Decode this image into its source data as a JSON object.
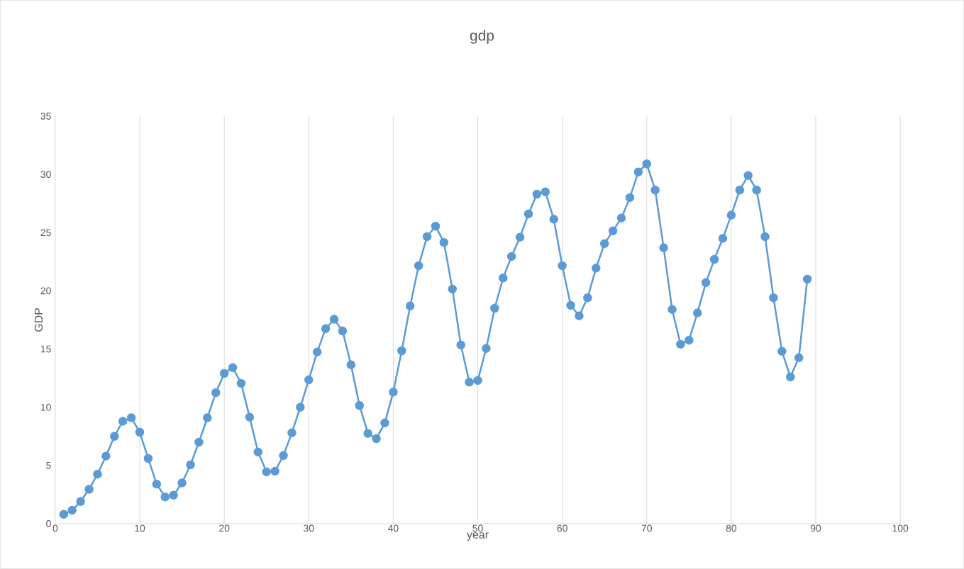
{
  "chart_data": {
    "type": "line",
    "title": "gdp",
    "xlabel": "year",
    "ylabel": "GDP",
    "x": [
      1,
      2,
      3,
      4,
      5,
      6,
      7,
      8,
      9,
      10,
      11,
      12,
      13,
      14,
      15,
      16,
      17,
      18,
      19,
      20,
      21,
      22,
      23,
      24,
      25,
      26,
      27,
      28,
      29,
      30,
      31,
      32,
      33,
      34,
      35,
      36,
      37,
      38,
      39,
      40,
      41,
      42,
      43,
      44,
      45,
      46,
      47,
      48,
      49,
      50,
      51,
      52,
      53,
      54,
      55,
      56,
      57,
      58,
      59,
      60,
      61,
      62,
      63,
      64,
      65,
      66,
      67,
      68,
      69,
      70,
      71,
      72,
      73,
      74,
      75,
      76,
      77,
      78,
      79,
      80,
      81,
      82,
      83,
      84,
      85,
      86,
      87,
      88,
      89
    ],
    "series": [
      {
        "color": "#5b9bd5",
        "values": [
          0.8,
          1.15,
          1.9,
          2.95,
          4.25,
          5.8,
          7.5,
          8.8,
          9.1,
          7.85,
          5.6,
          3.4,
          2.3,
          2.45,
          3.5,
          5.05,
          7.0,
          9.1,
          11.25,
          12.9,
          13.4,
          12.05,
          9.15,
          6.15,
          4.45,
          4.5,
          5.85,
          7.8,
          10.0,
          12.35,
          14.75,
          16.75,
          17.55,
          16.55,
          13.65,
          10.15,
          7.75,
          7.3,
          8.65,
          11.3,
          14.85,
          18.7,
          22.15,
          24.65,
          25.55,
          24.15,
          20.15,
          15.35,
          12.15,
          12.3,
          15.05,
          18.5,
          21.1,
          22.95,
          24.6,
          26.6,
          28.3,
          28.5,
          26.15,
          22.15,
          18.75,
          17.85,
          19.4,
          21.95,
          24.05,
          25.15,
          26.25,
          28.0,
          30.2,
          30.9,
          28.65,
          23.7,
          18.4,
          15.4,
          15.75,
          18.1,
          20.7,
          22.7,
          24.5,
          26.5,
          28.65,
          29.9,
          28.65,
          24.65,
          19.4,
          14.8,
          12.6,
          14.25,
          21.0
        ]
      }
    ],
    "xlim": [
      0,
      100
    ],
    "xticks": [
      0,
      10,
      20,
      30,
      40,
      50,
      60,
      70,
      80,
      90,
      100
    ],
    "ylim": [
      0,
      35
    ],
    "yticks": [
      0,
      5,
      10,
      15,
      20,
      25,
      30,
      35
    ],
    "grid": "x",
    "marker": "circle",
    "line_style": "solid"
  }
}
